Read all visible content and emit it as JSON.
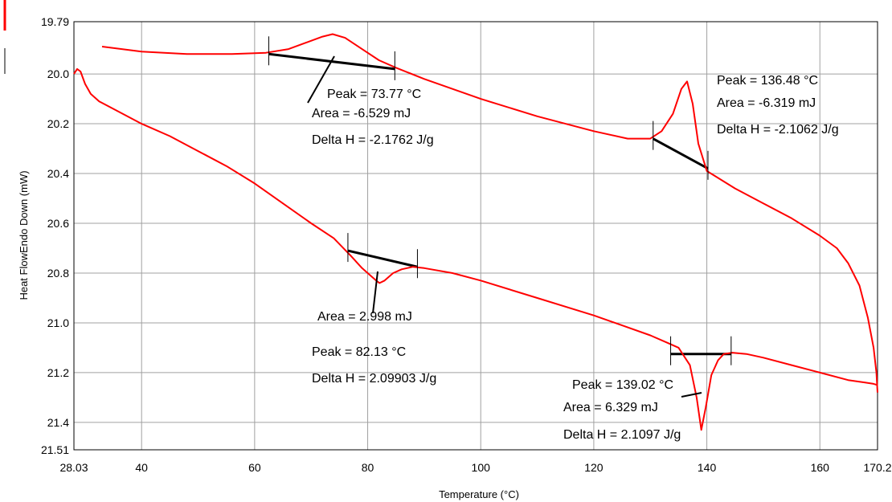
{
  "chart_data": {
    "type": "line",
    "title": "",
    "xlabel": "Temperature (°C)",
    "ylabel": "Heat FlowEndo Down (mW)",
    "xlim": [
      28.03,
      170.2
    ],
    "ylim": [
      19.79,
      21.51
    ],
    "y_inverted": true,
    "x_tick_labels": [
      "28.03",
      "40",
      "60",
      "80",
      "100",
      "120",
      "140",
      "160",
      "170.2"
    ],
    "x_tick_values": [
      28.03,
      40,
      60,
      80,
      100,
      120,
      140,
      160,
      170.2
    ],
    "y_tick_labels": [
      "19.79",
      "20.0",
      "20.2",
      "20.4",
      "20.6",
      "20.8",
      "21.0",
      "21.2",
      "21.4",
      "21.51"
    ],
    "y_tick_values": [
      19.79,
      20.0,
      20.2,
      20.4,
      20.6,
      20.8,
      21.0,
      21.2,
      21.4,
      21.51
    ],
    "grid": true,
    "series_color": "#ff0000",
    "baseline_color": "#000000",
    "series": [
      {
        "x": [
          33,
          40,
          48,
          56,
          62,
          66,
          69,
          72,
          73.8,
          76,
          79,
          82,
          85,
          90,
          100,
          110,
          120,
          126,
          130,
          132,
          134,
          135.5,
          136.5,
          137.5,
          138.5,
          140,
          145,
          150,
          155,
          160,
          163,
          165,
          167,
          168.5,
          169.5,
          170,
          170.2
        ],
        "y": [
          19.89,
          19.91,
          19.92,
          19.92,
          19.915,
          19.9,
          19.875,
          19.85,
          19.84,
          19.855,
          19.9,
          19.945,
          19.975,
          20.02,
          20.1,
          20.17,
          20.23,
          20.26,
          20.26,
          20.23,
          20.16,
          20.06,
          20.03,
          20.12,
          20.28,
          20.39,
          20.46,
          20.52,
          20.58,
          20.65,
          20.7,
          20.76,
          20.85,
          20.98,
          21.1,
          21.2,
          21.28
        ]
      },
      {
        "x": [
          28.03,
          28.6,
          29.2,
          30,
          31,
          32.5,
          35,
          40,
          45,
          50,
          55,
          60,
          65,
          70,
          74,
          77,
          79,
          80.5,
          81.5,
          82.1,
          83,
          84.5,
          86,
          88,
          90,
          95,
          100,
          110,
          120,
          125,
          130,
          133,
          135,
          137,
          138.2,
          139.02,
          139.8,
          140.8,
          142,
          143,
          144.5,
          147,
          150,
          155,
          160,
          165,
          168,
          169.5,
          170.2
        ],
        "y": [
          20.0,
          19.98,
          19.99,
          20.04,
          20.08,
          20.11,
          20.14,
          20.2,
          20.25,
          20.31,
          20.37,
          20.44,
          20.52,
          20.6,
          20.66,
          20.73,
          20.78,
          20.81,
          20.83,
          20.84,
          20.83,
          20.8,
          20.785,
          20.775,
          20.78,
          20.8,
          20.83,
          20.9,
          20.97,
          21.01,
          21.05,
          21.08,
          21.1,
          21.17,
          21.3,
          21.43,
          21.34,
          21.21,
          21.15,
          21.125,
          21.12,
          21.125,
          21.14,
          21.17,
          21.2,
          21.23,
          21.24,
          21.245,
          21.25
        ]
      }
    ],
    "baselines": [
      {
        "x1": 62.5,
        "y1": 19.92,
        "x2": 84.8,
        "y2": 19.98
      },
      {
        "x1": 130.5,
        "y1": 20.26,
        "x2": 140.2,
        "y2": 20.38
      },
      {
        "x1": 76.5,
        "y1": 20.71,
        "x2": 88.8,
        "y2": 20.775
      },
      {
        "x1": 133.6,
        "y1": 21.125,
        "x2": 144.3,
        "y2": 21.125
      }
    ],
    "annotations": [
      {
        "lines": [
          "Peak = 73.77 °C",
          "Area = -6.529 mJ",
          "Delta H = -2.1762 J/g"
        ]
      },
      {
        "lines": [
          "Peak = 136.48 °C",
          "Area = -6.319 mJ",
          "Delta H = -2.1062 J/g"
        ]
      },
      {
        "lines": [
          "Area = 2.998 mJ"
        ]
      },
      {
        "lines": [
          "Peak = 82.13 °C",
          "Delta H = 2.09903 J/g"
        ]
      },
      {
        "lines": [
          "Peak = 139.02 °C",
          "Area = 6.329 mJ",
          "Delta H = 2.1097 J/g"
        ]
      }
    ]
  }
}
